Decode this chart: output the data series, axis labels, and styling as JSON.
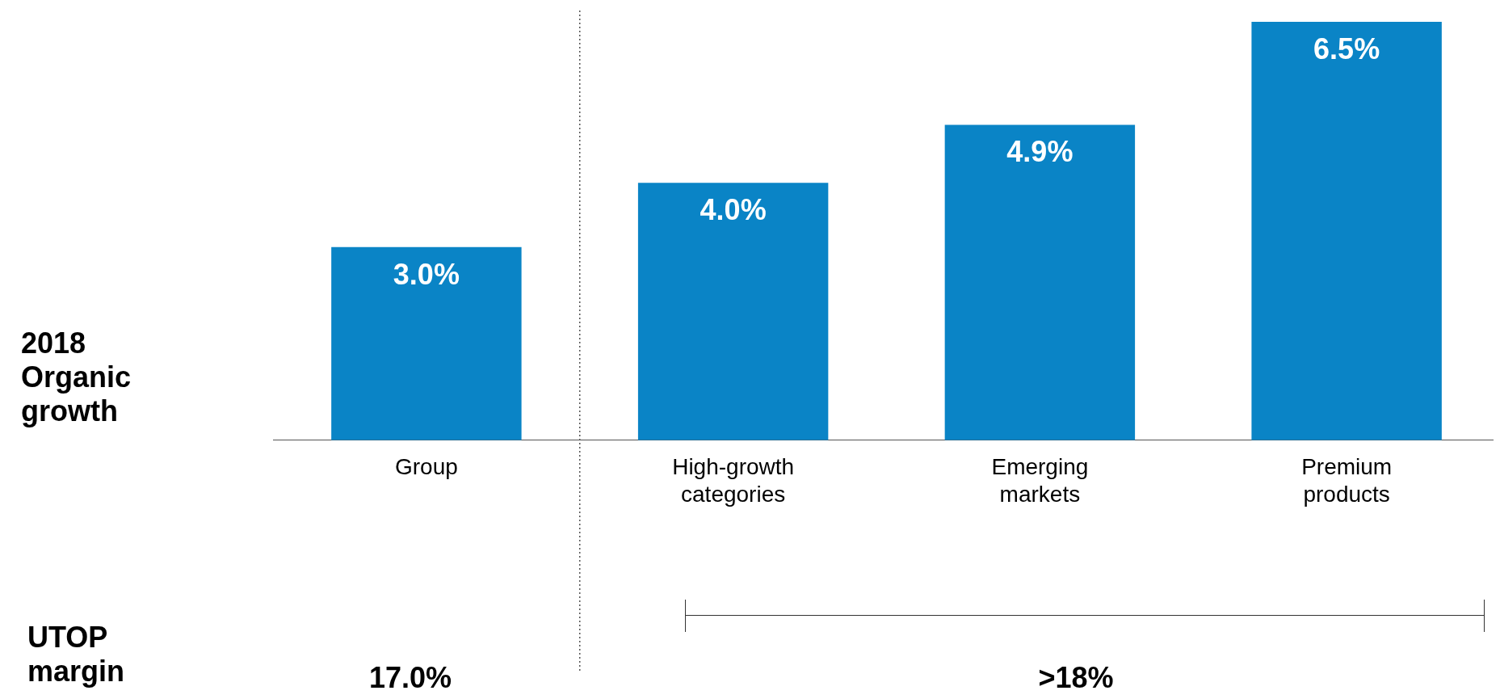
{
  "chart_data": {
    "type": "bar",
    "ylabel": "2018 Organic growth",
    "categories": [
      "Group",
      "High-growth categories",
      "Emerging markets",
      "Premium products"
    ],
    "values": [
      3.0,
      4.0,
      4.9,
      6.5
    ],
    "value_labels": [
      "3.0%",
      "4.0%",
      "4.9%",
      "6.5%"
    ],
    "color": "#0a84c6",
    "grid": false,
    "legend": false,
    "annotations": [
      "UTOP margin",
      "17.0%",
      ">18%"
    ]
  }
}
